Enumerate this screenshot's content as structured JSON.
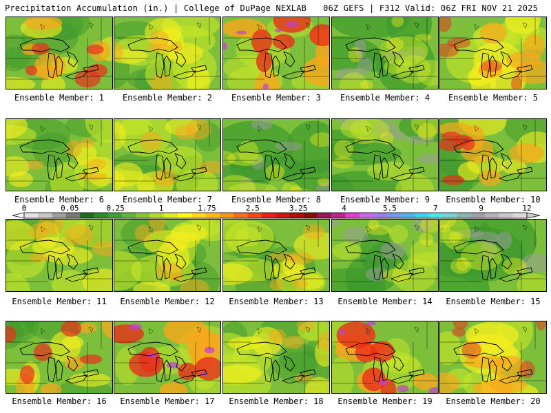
{
  "header": {
    "title": "Precipitation Accumulation (in.) | College of DuPage NEXLAB",
    "run_info": "06Z GEFS | F312 Valid: 06Z FRI NOV 21 2025"
  },
  "members": [
    {
      "label": "Ensemble Member: 1",
      "theme": "wet-east"
    },
    {
      "label": "Ensemble Member: 2",
      "theme": "moderate"
    },
    {
      "label": "Ensemble Member: 3",
      "theme": "heavy"
    },
    {
      "label": "Ensemble Member: 4",
      "theme": "dry"
    },
    {
      "label": "Ensemble Member: 5",
      "theme": "moderate-wet"
    },
    {
      "label": "Ensemble Member: 6",
      "theme": "moderate"
    },
    {
      "label": "Ensemble Member: 7",
      "theme": "moderate"
    },
    {
      "label": "Ensemble Member: 8",
      "theme": "dry"
    },
    {
      "label": "Ensemble Member: 9",
      "theme": "dry"
    },
    {
      "label": "Ensemble Member: 10",
      "theme": "wet-east"
    },
    {
      "label": "Ensemble Member: 11",
      "theme": "moderate"
    },
    {
      "label": "Ensemble Member: 12",
      "theme": "moderate"
    },
    {
      "label": "Ensemble Member: 13",
      "theme": "moderate"
    },
    {
      "label": "Ensemble Member: 14",
      "theme": "dry"
    },
    {
      "label": "Ensemble Member: 15",
      "theme": "dry"
    },
    {
      "label": "Ensemble Member: 16",
      "theme": "wet-east"
    },
    {
      "label": "Ensemble Member: 17",
      "theme": "heavy"
    },
    {
      "label": "Ensemble Member: 18",
      "theme": "moderate"
    },
    {
      "label": "Ensemble Member: 19",
      "theme": "heavy"
    },
    {
      "label": "Ensemble Member: 20",
      "theme": "moderate-wet"
    }
  ],
  "colorbar": {
    "tick_labels": [
      "0",
      "0.05",
      "0.25",
      "1",
      "1.75",
      "2.5",
      "3.25",
      "4",
      "5.5",
      "7",
      "9",
      "12"
    ],
    "colors": [
      "#e3e3e3",
      "#c8c8c8",
      "#a0a0a0",
      "#7a7a7a",
      "#1f6b1f",
      "#2e8b2e",
      "#3ca33c",
      "#62b832",
      "#8cc828",
      "#b4dc28",
      "#dcf01e",
      "#fffa14",
      "#ffdc14",
      "#ffbe14",
      "#ff9614",
      "#ff6e14",
      "#ff4614",
      "#f01e14",
      "#d21414",
      "#b40a0a",
      "#8c0a0a",
      "#a0145a",
      "#c81e8c",
      "#e63cc8",
      "#d264f0",
      "#a078f0",
      "#7896f0",
      "#50b4f0",
      "#3cd2f0",
      "#50e6e6",
      "#78d2d2",
      "#8cb4b4",
      "#a0a0a0",
      "#b4b4b4",
      "#c8c8c8",
      "#dcdcdc"
    ]
  },
  "palette": {
    "background": "#7cbf3a",
    "dark_green": "#3f9a2e",
    "yellow_green": "#c8e628",
    "yellow": "#f5ee1e",
    "orange": "#f8a81c",
    "red": "#e8301c",
    "grey": "#9c9c9c",
    "magenta": "#c040d0"
  }
}
